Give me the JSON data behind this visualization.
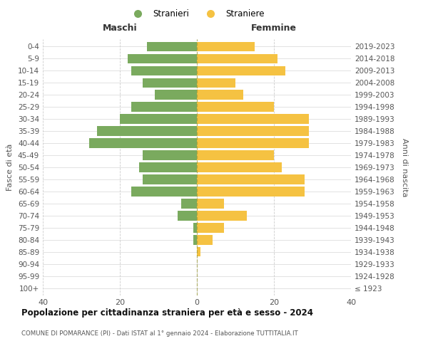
{
  "age_groups": [
    "100+",
    "95-99",
    "90-94",
    "85-89",
    "80-84",
    "75-79",
    "70-74",
    "65-69",
    "60-64",
    "55-59",
    "50-54",
    "45-49",
    "40-44",
    "35-39",
    "30-34",
    "25-29",
    "20-24",
    "15-19",
    "10-14",
    "5-9",
    "0-4"
  ],
  "birth_years": [
    "≤ 1923",
    "1924-1928",
    "1929-1933",
    "1934-1938",
    "1939-1943",
    "1944-1948",
    "1949-1953",
    "1954-1958",
    "1959-1963",
    "1964-1968",
    "1969-1973",
    "1974-1978",
    "1979-1983",
    "1984-1988",
    "1989-1993",
    "1994-1998",
    "1999-2003",
    "2004-2008",
    "2009-2013",
    "2014-2018",
    "2019-2023"
  ],
  "males": [
    0,
    0,
    0,
    0,
    1,
    1,
    5,
    4,
    17,
    14,
    15,
    14,
    28,
    26,
    20,
    17,
    11,
    14,
    17,
    18,
    13
  ],
  "females": [
    0,
    0,
    0,
    1,
    4,
    7,
    13,
    7,
    28,
    28,
    22,
    20,
    29,
    29,
    29,
    20,
    12,
    10,
    23,
    21,
    15
  ],
  "male_color": "#7aaa5e",
  "female_color": "#f5c242",
  "background_color": "#ffffff",
  "grid_color": "#cccccc",
  "title": "Popolazione per cittadinanza straniera per età e sesso - 2024",
  "subtitle": "COMUNE DI POMARANCE (PI) - Dati ISTAT al 1° gennaio 2024 - Elaborazione TUTTITALIA.IT",
  "ylabel_left": "Fasce di età",
  "ylabel_right": "Anni di nascita",
  "header_left": "Maschi",
  "header_right": "Femmine",
  "legend_male": "Stranieri",
  "legend_female": "Straniere",
  "xlim": 40,
  "bar_height": 0.78
}
